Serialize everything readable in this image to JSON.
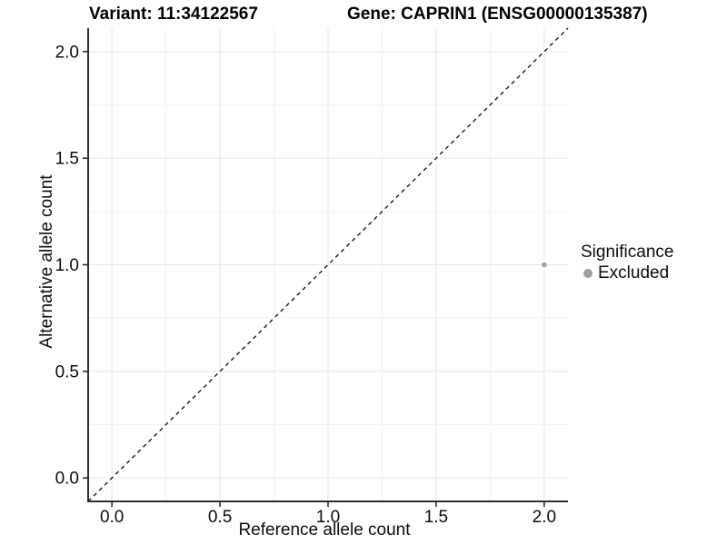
{
  "header": {
    "variant_title": "Variant: 11:34122567",
    "gene_title": "Gene: CAPRIN1 (ENSG00000135387)"
  },
  "axes": {
    "x_label": "Reference allele count",
    "y_label": "Alternative allele count"
  },
  "legend": {
    "title": "Significance",
    "items": [
      {
        "label": "Excluded",
        "color": "#a0a0a0"
      }
    ]
  },
  "chart_data": {
    "type": "scatter",
    "title_left": "Variant: 11:34122567",
    "title_right": "Gene: CAPRIN1 (ENSG00000135387)",
    "xlabel": "Reference allele count",
    "ylabel": "Alternative allele count",
    "xlim": [
      -0.11,
      2.11
    ],
    "ylim": [
      -0.11,
      2.11
    ],
    "x_ticks": [
      0.0,
      0.5,
      1.0,
      1.5,
      2.0
    ],
    "y_ticks": [
      0.0,
      0.5,
      1.0,
      1.5,
      2.0
    ],
    "x_tick_labels": [
      "0.0",
      "0.5",
      "1.0",
      "1.5",
      "2.0"
    ],
    "y_tick_labels": [
      "0.0",
      "0.5",
      "1.0",
      "1.5",
      "2.0"
    ],
    "minor_ticks": [
      0.25,
      0.75,
      1.25,
      1.75
    ],
    "grid": true,
    "legend_position": "right",
    "series": [
      {
        "name": "Excluded",
        "points": [
          {
            "x": 2.0,
            "y": 1.0
          }
        ],
        "color": "#a0a0a0"
      }
    ],
    "reference_line": {
      "description": "identity line y = x",
      "slope": 1,
      "intercept": 0,
      "linetype": "dashed",
      "color": "#1a1a1a"
    },
    "colors": {
      "background": "#ffffff",
      "grid_major": "#e7e7e7",
      "grid_minor": "#f2f2f2",
      "axis_line": "#2e2e2e",
      "tick_text": "#0d0d0d",
      "point": "#a0a0a0"
    }
  }
}
